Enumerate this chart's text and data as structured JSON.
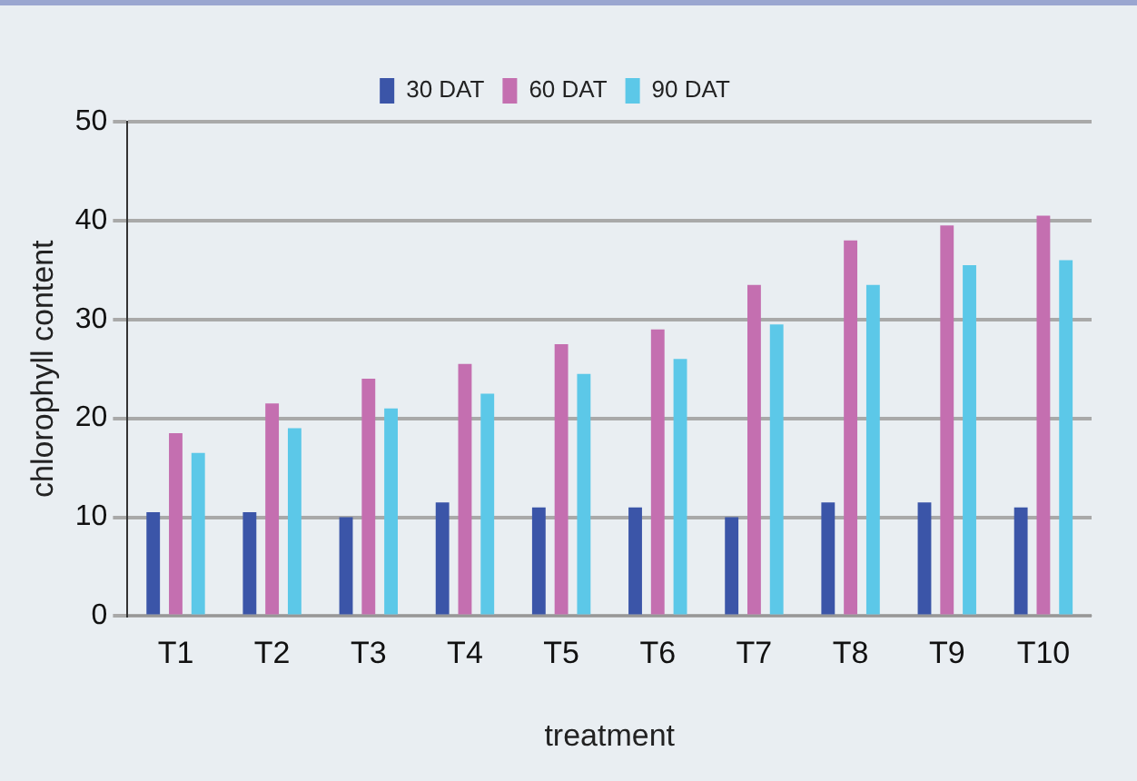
{
  "chart_data": {
    "type": "bar",
    "xlabel": "treatment",
    "ylabel": "chlorophyll content",
    "categories": [
      "T1",
      "T2",
      "T3",
      "T4",
      "T5",
      "T6",
      "T7",
      "T8",
      "T9",
      "T10"
    ],
    "series": [
      {
        "name": "30 DAT",
        "color": "#3b55a8",
        "values": [
          10.5,
          10.5,
          10,
          11.5,
          11,
          11,
          10,
          11.5,
          11.5,
          11
        ]
      },
      {
        "name": "60 DAT",
        "color": "#c46fb0",
        "values": [
          18.5,
          21.5,
          24,
          25.5,
          27.5,
          29,
          33.5,
          38,
          39.5,
          40.5
        ]
      },
      {
        "name": "90 DAT",
        "color": "#5cc8e8",
        "values": [
          16.5,
          19,
          21,
          22.5,
          24.5,
          26,
          29.5,
          33.5,
          35.5,
          36
        ]
      }
    ],
    "ylim": [
      0,
      50
    ],
    "yticks": [
      0,
      10,
      20,
      30,
      40,
      50
    ],
    "grid": "y",
    "legend": "top"
  }
}
